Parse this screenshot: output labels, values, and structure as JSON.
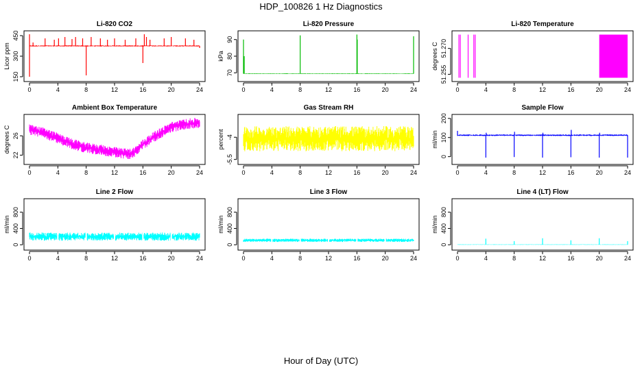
{
  "title": "HDP_100826  1 Hz Diagnostics",
  "xlabel": "Hour of Day (UTC)",
  "chart_data": [
    {
      "type": "line",
      "title": "Li-820 CO2",
      "ylabel": "Licor ppm",
      "xlim": [
        0,
        24
      ],
      "ylim": [
        130,
        470
      ],
      "xticks": [
        0,
        4,
        8,
        12,
        16,
        20,
        24
      ],
      "yticks": [
        150,
        300,
        450
      ],
      "color": "#ff0000",
      "baseline": 375,
      "noise": 4,
      "spikes": [
        [
          0,
          460
        ],
        [
          0,
          150
        ],
        [
          0.5,
          400
        ],
        [
          2.2,
          430
        ],
        [
          3.5,
          420
        ],
        [
          4.1,
          430
        ],
        [
          5,
          440
        ],
        [
          6,
          425
        ],
        [
          6.5,
          440
        ],
        [
          7.5,
          430
        ],
        [
          8,
          160
        ],
        [
          8.2,
          370
        ],
        [
          8.7,
          440
        ],
        [
          10,
          430
        ],
        [
          11,
          420
        ],
        [
          12,
          430
        ],
        [
          13.5,
          420
        ],
        [
          15,
          430
        ],
        [
          16,
          250
        ],
        [
          16.2,
          460
        ],
        [
          16.5,
          440
        ],
        [
          17,
          420
        ],
        [
          19,
          430
        ],
        [
          20,
          440
        ],
        [
          22,
          430
        ],
        [
          23.2,
          420
        ],
        [
          24,
          360
        ]
      ]
    },
    {
      "type": "line",
      "title": "Li-820 Pressure",
      "ylabel": "kPa",
      "xlim": [
        0,
        24
      ],
      "ylim": [
        66,
        94
      ],
      "xticks": [
        0,
        4,
        8,
        12,
        16,
        20,
        24
      ],
      "yticks": [
        70,
        80,
        90
      ],
      "color": "#00bb00",
      "baseline": 69.5,
      "noise": 0.2,
      "spikes": [
        [
          0,
          90
        ],
        [
          0.1,
          80
        ],
        [
          8,
          92.5
        ],
        [
          16,
          93
        ],
        [
          16.05,
          90
        ],
        [
          24,
          92
        ]
      ]
    },
    {
      "type": "line",
      "title": "Li-820 Temperature",
      "ylabel": "degrees C",
      "xlim": [
        0,
        24
      ],
      "ylim": [
        51.252,
        51.279
      ],
      "xticks": [
        0,
        4,
        8,
        12,
        16,
        20,
        24
      ],
      "yticks": [
        51.255,
        51.27
      ],
      "color": "#ff00ff",
      "baseline": 51.253,
      "noise": 0,
      "spikes": [
        [
          0.2,
          51.278
        ],
        [
          0.4,
          51.278
        ],
        [
          1.5,
          51.278
        ],
        [
          2.3,
          51.278
        ],
        [
          2.5,
          51.278
        ]
      ],
      "band": [
        20,
        24,
        51.253,
        51.278
      ]
    },
    {
      "type": "line",
      "title": "Ambient Box Temperature",
      "ylabel": "degrees C",
      "xlim": [
        0,
        24
      ],
      "ylim": [
        20.5,
        30
      ],
      "xticks": [
        0,
        4,
        8,
        12,
        16,
        20,
        24
      ],
      "yticks": [
        22,
        26
      ],
      "color": "#ff00ff",
      "curve": [
        [
          0,
          27.3
        ],
        [
          2,
          26.6
        ],
        [
          4,
          25.5
        ],
        [
          6,
          24.3
        ],
        [
          8,
          23.5
        ],
        [
          10,
          23.1
        ],
        [
          12,
          22.6
        ],
        [
          14,
          22.2
        ],
        [
          15,
          22.8
        ],
        [
          16,
          24.2
        ],
        [
          18,
          26.2
        ],
        [
          20,
          27.8
        ],
        [
          22,
          28.4
        ],
        [
          24,
          28.7
        ]
      ],
      "noise": 1.1
    },
    {
      "type": "line",
      "title": "Gas Stream RH",
      "ylabel": "percent",
      "xlim": [
        0,
        24
      ],
      "ylim": [
        -5.7,
        -2.6
      ],
      "xticks": [
        0,
        4,
        8,
        12,
        16,
        20,
        24
      ],
      "yticks": [
        -5.5,
        -4.0
      ],
      "color": "#ffff00",
      "baseline": -4.1,
      "noise": 0.85
    },
    {
      "type": "line",
      "title": "Sample Flow",
      "ylabel": "ml/min",
      "xlim": [
        0,
        24
      ],
      "ylim": [
        -30,
        210
      ],
      "xticks": [
        0,
        4,
        8,
        12,
        16,
        20,
        24
      ],
      "yticks": [
        0,
        100,
        200
      ],
      "color": "#0000ff",
      "baseline": 112,
      "noise": 4,
      "spikes": [
        [
          0,
          135
        ],
        [
          4,
          -5
        ],
        [
          4.05,
          125
        ],
        [
          8,
          -2
        ],
        [
          8.05,
          130
        ],
        [
          12,
          -5
        ],
        [
          12.05,
          125
        ],
        [
          16,
          -3
        ],
        [
          16.05,
          140
        ],
        [
          20,
          -5
        ],
        [
          20.05,
          125
        ],
        [
          24,
          -5
        ]
      ]
    },
    {
      "type": "line",
      "title": "Line 2 Flow",
      "ylabel": "ml/min",
      "xlim": [
        0,
        24
      ],
      "ylim": [
        -80,
        1080
      ],
      "xticks": [
        0,
        4,
        8,
        12,
        16,
        20,
        24
      ],
      "yticks": [
        0,
        400,
        800
      ],
      "color": "#00ffff",
      "baseline": 200,
      "noise": 100,
      "gaps": [
        4,
        8,
        12,
        16,
        20
      ]
    },
    {
      "type": "line",
      "title": "Line 3 Flow",
      "ylabel": "ml/min",
      "xlim": [
        0,
        24
      ],
      "ylim": [
        -80,
        1080
      ],
      "xticks": [
        0,
        4,
        8,
        12,
        16,
        20,
        24
      ],
      "yticks": [
        0,
        400,
        800
      ],
      "color": "#00ffff",
      "baseline": 110,
      "noise": 40,
      "gaps": [
        4,
        8,
        12,
        16,
        20
      ]
    },
    {
      "type": "line",
      "title": "Line 4 (LT) Flow",
      "ylabel": "ml/min",
      "xlim": [
        0,
        24
      ],
      "ylim": [
        -80,
        1080
      ],
      "xticks": [
        0,
        4,
        8,
        12,
        16,
        20,
        24
      ],
      "yticks": [
        0,
        400,
        800
      ],
      "color": "#00ffff",
      "baseline": 5,
      "noise": 6,
      "spikes": [
        [
          4,
          150
        ],
        [
          8,
          90
        ],
        [
          12,
          160
        ],
        [
          16,
          110
        ],
        [
          20,
          160
        ],
        [
          24,
          90
        ]
      ]
    }
  ]
}
